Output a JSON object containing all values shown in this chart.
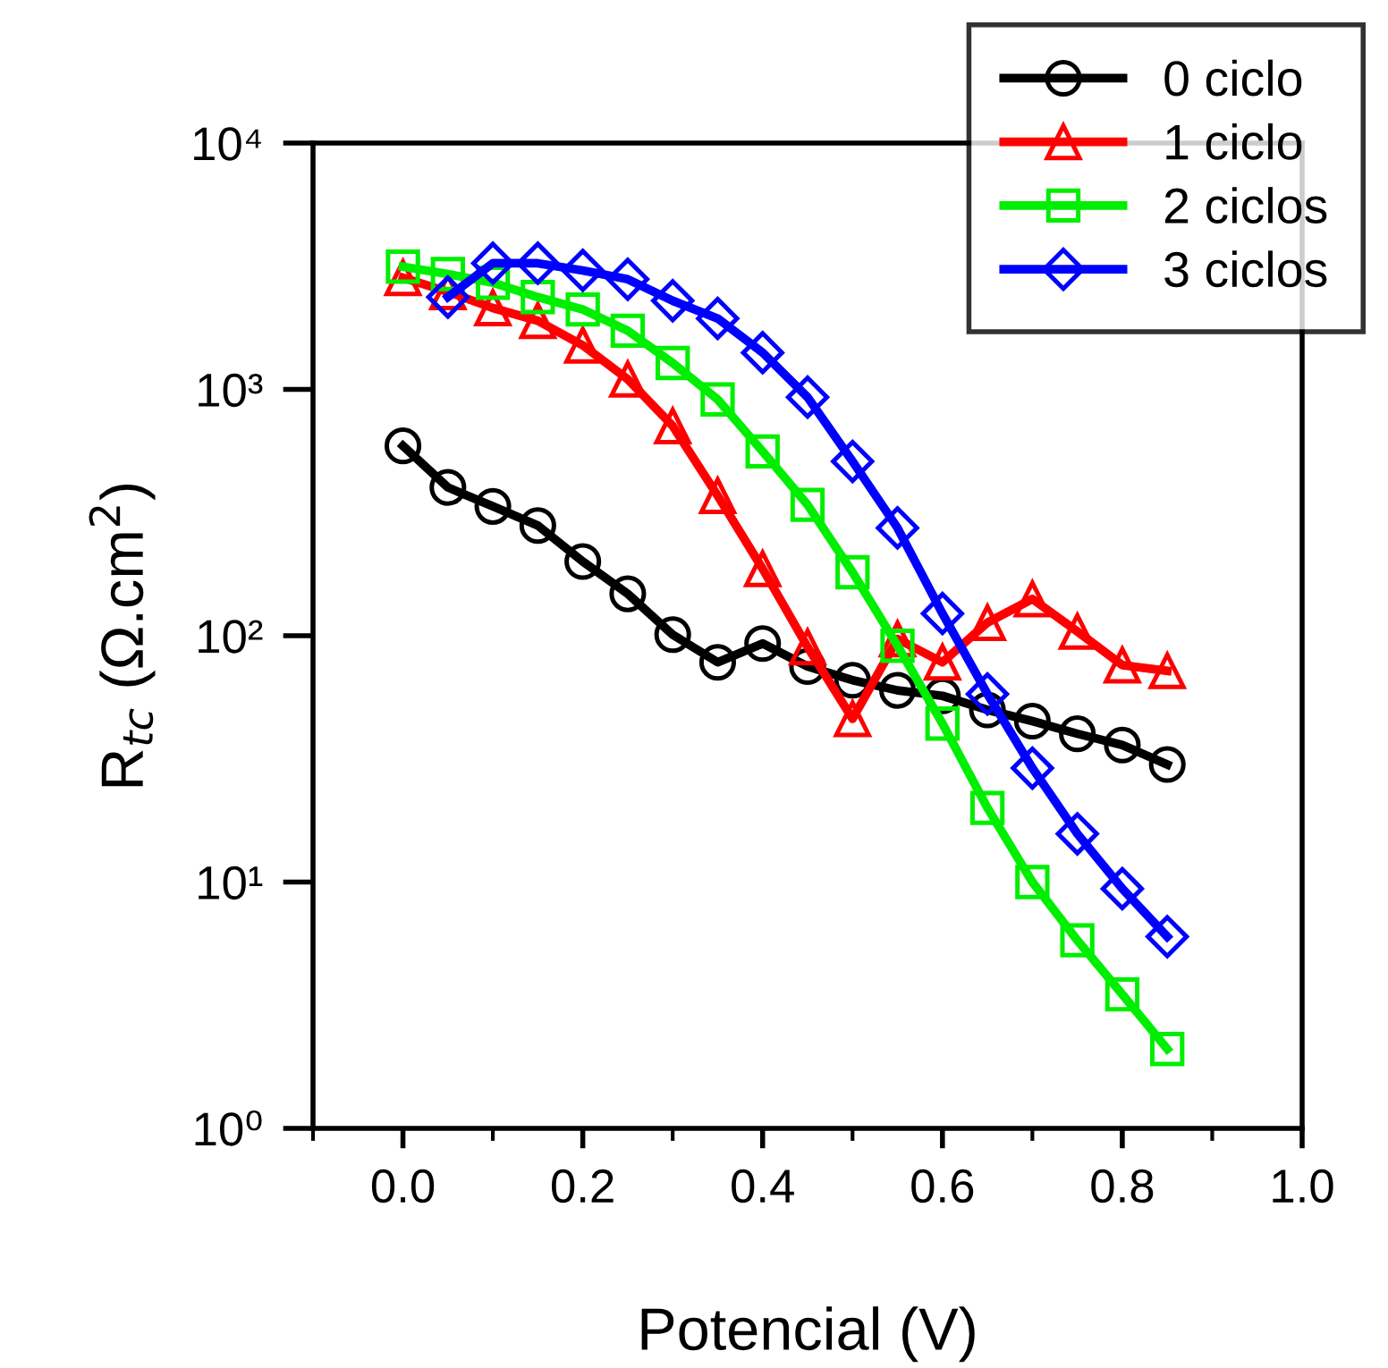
{
  "chart_data": {
    "type": "line",
    "xlabel": "Potencial (V)",
    "ylabel": "R$_{tc}$ (Ω.cm$^{2}$)",
    "log": "y",
    "xlim": [
      -0.1,
      1.0
    ],
    "xticks": [
      {
        "value": 0.0,
        "label": "0.0"
      },
      0.2,
      0.4,
      0.6,
      0.8,
      {
        "value": 1.0,
        "label": "1.0"
      }
    ],
    "ylim": [
      1,
      10000
    ],
    "yticks": [
      {
        "value": 1,
        "label": "10⁰"
      },
      {
        "value": 10,
        "label": "10¹"
      },
      {
        "value": 100,
        "label": "10²"
      },
      {
        "value": 1000,
        "label": "10³"
      },
      {
        "value": 10000,
        "label": "10⁴"
      }
    ],
    "grid": false,
    "legend": "top right",
    "line_style": "solid",
    "x": [
      0.0,
      0.05,
      0.1,
      0.15,
      0.2,
      0.25,
      0.3,
      0.35,
      0.4,
      0.45,
      0.5,
      0.55,
      0.6,
      0.65,
      0.7,
      0.75,
      0.8,
      0.85
    ],
    "series": [
      {
        "name": "0 ciclo",
        "color": "#000000",
        "marker": "circle",
        "values": [
          590,
          400,
          335,
          280,
          200,
          148,
          101,
          78,
          93,
          75,
          66,
          60,
          57,
          50,
          45,
          40,
          36,
          30
        ]
      },
      {
        "name": "1 ciclo",
        "color": "#ff0000",
        "marker": "triangle",
        "values": [
          2840,
          2490,
          2140,
          1900,
          1510,
          1100,
          710,
          370,
          187,
          90,
          46,
          97,
          78,
          113,
          141,
          104,
          76,
          72
        ]
      },
      {
        "name": "2 ciclos",
        "color": "#00ee00",
        "marker": "square",
        "values": [
          3150,
          2940,
          2710,
          2370,
          2110,
          1730,
          1280,
          910,
          560,
          340,
          181,
          91,
          44,
          20,
          10,
          5.8,
          3.5,
          2.1
        ]
      },
      {
        "name": "3 ciclos",
        "color": "#0000ff",
        "marker": "diamond",
        "values": [
          null,
          2370,
          3250,
          3250,
          3040,
          2800,
          2290,
          1940,
          1410,
          930,
          510,
          274,
          123,
          58,
          29,
          15.7,
          9.4,
          6.0
        ]
      }
    ]
  }
}
